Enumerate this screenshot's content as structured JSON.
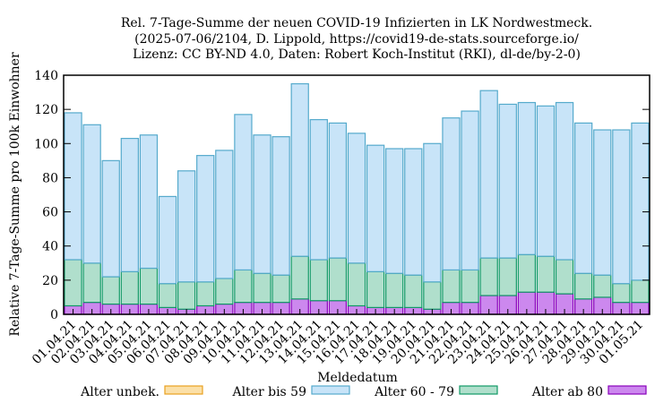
{
  "chart_data": {
    "type": "bar",
    "stacked": true,
    "title": [
      "Rel. 7-Tage-Summe der neuen COVID-19 Infizierten in LK Nordwestmeck.",
      "(2025-07-06/2104, D. Lippold, https://covid19-de-stats.sourceforge.io/",
      "Lizenz: CC BY-ND 4.0, Daten: Robert Koch-Institut (RKI), dl-de/by-2-0)"
    ],
    "xlabel": "Meldedatum",
    "ylabel": "Relative 7-Tage-Summe pro 100k Einwohner",
    "ylim": [
      0,
      140
    ],
    "yticks": [
      0,
      20,
      40,
      60,
      80,
      100,
      120,
      140
    ],
    "grid": false,
    "legend_position": "bottom",
    "categories": [
      "01.04.21",
      "02.04.21",
      "03.04.21",
      "04.04.21",
      "05.04.21",
      "06.04.21",
      "07.04.21",
      "08.04.21",
      "09.04.21",
      "10.04.21",
      "11.04.21",
      "12.04.21",
      "13.04.21",
      "14.04.21",
      "15.04.21",
      "16.04.21",
      "17.04.21",
      "18.04.21",
      "19.04.21",
      "20.04.21",
      "21.04.21",
      "22.04.21",
      "23.04.21",
      "24.04.21",
      "25.04.21",
      "26.04.21",
      "27.04.21",
      "28.04.21",
      "29.04.21",
      "30.04.21",
      "01.05.21"
    ],
    "series": [
      {
        "name": "Alter ab 80",
        "color": "#cc88ee",
        "edge": "#8800bb",
        "values": [
          5,
          7,
          6,
          6,
          6,
          4,
          3,
          5,
          6,
          7,
          7,
          7,
          9,
          8,
          8,
          5,
          4,
          4,
          4,
          3,
          7,
          7,
          11,
          11,
          13,
          13,
          12,
          9,
          10,
          7,
          7
        ]
      },
      {
        "name": "Alter 60 - 79",
        "color": "#b0dfcc",
        "edge": "#119966",
        "values": [
          27,
          23,
          16,
          19,
          21,
          14,
          16,
          14,
          15,
          19,
          17,
          16,
          25,
          24,
          25,
          25,
          21,
          20,
          19,
          16,
          19,
          19,
          22,
          22,
          22,
          21,
          20,
          15,
          13,
          11,
          13
        ]
      },
      {
        "name": "Alter bis 59",
        "color": "#c8e4f8",
        "edge": "#55aacc",
        "values": [
          86,
          81,
          68,
          78,
          78,
          51,
          65,
          74,
          75,
          91,
          81,
          81,
          101,
          82,
          79,
          76,
          74,
          73,
          74,
          81,
          89,
          93,
          98,
          90,
          89,
          88,
          92,
          88,
          85,
          90,
          92
        ]
      },
      {
        "name": "Alter unbek.",
        "color": "#fbe0a8",
        "edge": "#e8a020",
        "values": [
          0,
          0,
          0,
          0,
          0,
          0,
          0,
          0,
          0,
          0,
          0,
          0,
          0,
          0,
          0,
          0,
          0,
          0,
          0,
          0,
          0,
          0,
          0,
          0,
          0,
          0,
          0,
          0,
          0,
          0,
          0
        ]
      }
    ],
    "legend_order": [
      "Alter unbek.",
      "Alter bis 59",
      "Alter 60 - 79",
      "Alter ab 80"
    ]
  }
}
